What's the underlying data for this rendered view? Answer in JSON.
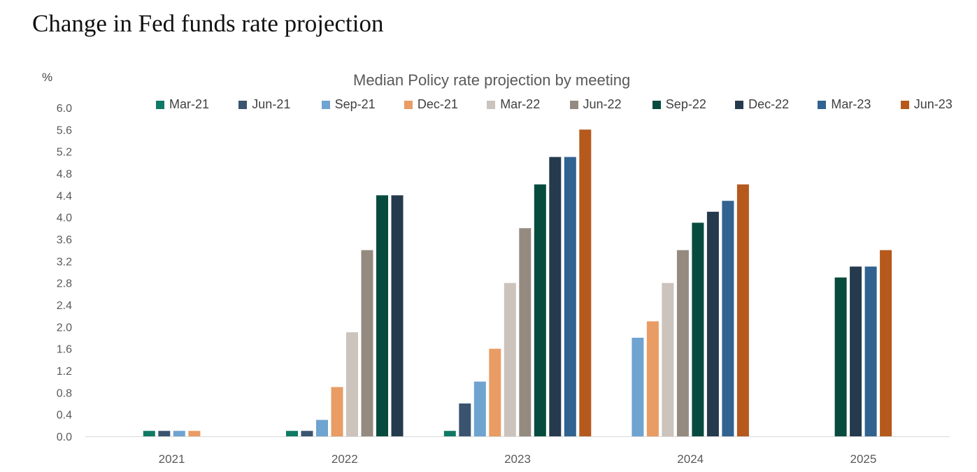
{
  "page": {
    "title": "Change in Fed funds rate projection"
  },
  "chart_data": {
    "type": "bar",
    "title": "Median Policy rate projection by meeting",
    "ylabel": "%",
    "xlabel": "",
    "ylim": [
      0,
      6.0
    ],
    "yticks": [
      "0.0",
      "0.4",
      "0.8",
      "1.2",
      "1.6",
      "2.0",
      "2.4",
      "2.8",
      "3.2",
      "3.6",
      "4.0",
      "4.4",
      "4.8",
      "5.2",
      "5.6",
      "6.0"
    ],
    "grid": false,
    "legend_position": "top",
    "categories": [
      "2021",
      "2022",
      "2023",
      "2024",
      "2025"
    ],
    "series": [
      {
        "name": "Mar-21",
        "color": "#0f7a64",
        "values": [
          0.1,
          0.1,
          0.1,
          null,
          null
        ]
      },
      {
        "name": "Jun-21",
        "color": "#3a5470",
        "values": [
          0.1,
          0.1,
          0.6,
          null,
          null
        ]
      },
      {
        "name": "Sep-21",
        "color": "#6fa3d0",
        "values": [
          0.1,
          0.3,
          1.0,
          1.8,
          null
        ]
      },
      {
        "name": "Dec-21",
        "color": "#e99c64",
        "values": [
          0.1,
          0.9,
          1.6,
          2.1,
          null
        ]
      },
      {
        "name": "Mar-22",
        "color": "#cbc3bc",
        "values": [
          null,
          1.9,
          2.8,
          2.8,
          null
        ]
      },
      {
        "name": "Jun-22",
        "color": "#958a7f",
        "values": [
          null,
          3.4,
          3.8,
          3.4,
          null
        ]
      },
      {
        "name": "Sep-22",
        "color": "#064b3e",
        "values": [
          null,
          4.4,
          4.6,
          3.9,
          2.9
        ]
      },
      {
        "name": "Dec-22",
        "color": "#263a4e",
        "values": [
          null,
          4.4,
          5.1,
          4.1,
          3.1
        ]
      },
      {
        "name": "Mar-23",
        "color": "#32628f",
        "values": [
          null,
          null,
          5.1,
          4.3,
          3.1
        ]
      },
      {
        "name": "Jun-23",
        "color": "#b5591d",
        "values": [
          null,
          null,
          5.6,
          4.6,
          3.4
        ]
      }
    ]
  }
}
